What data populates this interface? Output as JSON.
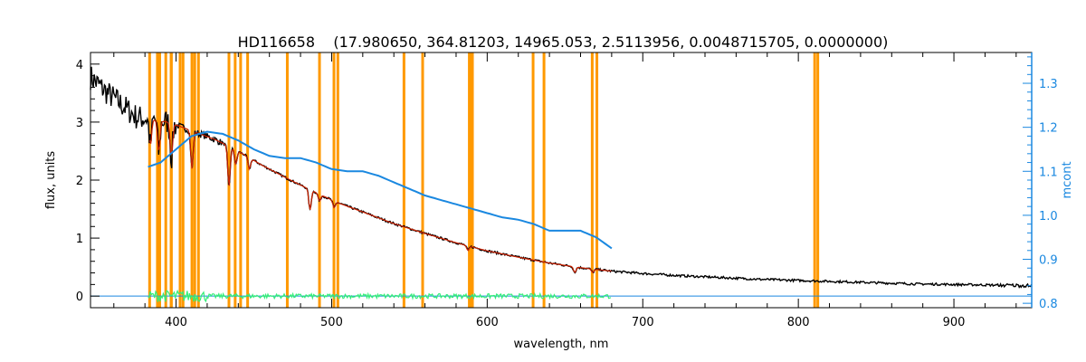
{
  "chart_data": {
    "type": "line",
    "title": "HD116658    (17.980650, 364.81203, 14965.053, 2.5113956, 0.0048715705, 0.0000000)",
    "xlabel": "wavelength, nm",
    "ylabel": "flux, units",
    "y2label": "mcont",
    "xlim": [
      345,
      950
    ],
    "ylim": [
      -0.2,
      4.2
    ],
    "y2lim": [
      0.79,
      1.37
    ],
    "xticks": [
      400,
      500,
      600,
      700,
      800,
      900
    ],
    "yticks": [
      0,
      1,
      2,
      3,
      4
    ],
    "y2ticks": [
      0.8,
      0.9,
      1.0,
      1.1,
      1.2,
      1.3
    ],
    "y2tick_labels": [
      "0.8",
      "0.9",
      "1.0",
      "1.1",
      "1.2",
      "1.3"
    ],
    "grid": false,
    "colors": {
      "mask": "#ff9900",
      "observed": "#000000",
      "model": "#cc2200",
      "residual": "#33ee77",
      "continuum": "#1a88e0",
      "zero_line": "#1a88e0"
    },
    "mask_lines": [
      383,
      388,
      389.5,
      393.4,
      396.8,
      397,
      402.6,
      404.5,
      410.2,
      412,
      414.4,
      434,
      438,
      441.5,
      446,
      471.5,
      492.2,
      501.5,
      504,
      546.5,
      558.5,
      588.5,
      589.6,
      590.5,
      629.5,
      636.5,
      667.5,
      670.5,
      810.5,
      812.5
    ],
    "series": [
      {
        "kind": "observed",
        "x": [
          345,
          355,
          365,
          375,
          385,
          395,
          405,
          415,
          425,
          435,
          445,
          455,
          465,
          475,
          485,
          495,
          505,
          520,
          540,
          560,
          580,
          600,
          620,
          640,
          660,
          680,
          700,
          725,
          750,
          775,
          800,
          825,
          850,
          875,
          900,
          925,
          950
        ],
        "y": [
          3.78,
          3.52,
          3.3,
          3.08,
          3.05,
          3.0,
          2.9,
          2.8,
          2.7,
          2.57,
          2.42,
          2.26,
          2.12,
          1.98,
          1.85,
          1.72,
          1.6,
          1.45,
          1.25,
          1.08,
          0.92,
          0.78,
          0.67,
          0.57,
          0.49,
          0.43,
          0.39,
          0.35,
          0.32,
          0.29,
          0.27,
          0.25,
          0.23,
          0.21,
          0.2,
          0.19,
          0.18
        ]
      },
      {
        "kind": "model",
        "x": [
          383,
          395,
          405,
          415,
          425,
          435,
          445,
          455,
          465,
          475,
          485,
          495,
          505,
          520,
          540,
          560,
          580,
          600,
          620,
          640,
          660,
          680
        ],
        "y": [
          3.05,
          3.0,
          2.9,
          2.8,
          2.7,
          2.57,
          2.42,
          2.26,
          2.12,
          1.98,
          1.85,
          1.72,
          1.6,
          1.45,
          1.25,
          1.08,
          0.92,
          0.78,
          0.67,
          0.57,
          0.49,
          0.43
        ]
      },
      {
        "kind": "continuum",
        "axis": "right",
        "x": [
          382,
          390,
          400,
          410,
          420,
          430,
          440,
          450,
          460,
          470,
          480,
          490,
          500,
          510,
          520,
          530,
          540,
          550,
          560,
          570,
          580,
          590,
          600,
          610,
          620,
          630,
          640,
          650,
          660,
          670,
          680
        ],
        "y": [
          1.11,
          1.12,
          1.15,
          1.18,
          1.19,
          1.185,
          1.17,
          1.15,
          1.135,
          1.13,
          1.13,
          1.12,
          1.105,
          1.1,
          1.1,
          1.09,
          1.075,
          1.06,
          1.045,
          1.035,
          1.025,
          1.015,
          1.005,
          0.995,
          0.99,
          0.98,
          0.965,
          0.965,
          0.965,
          0.95,
          0.925
        ]
      },
      {
        "kind": "residual",
        "x": [
          382,
          680
        ],
        "y": [
          0.0,
          0.0
        ]
      }
    ]
  }
}
